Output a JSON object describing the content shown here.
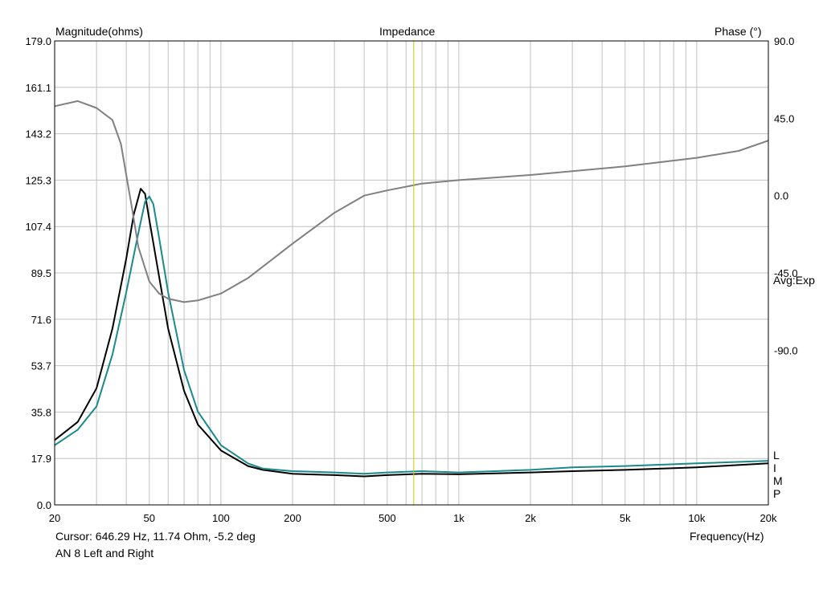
{
  "chart_data": {
    "type": "line",
    "title": "Impedance",
    "left_axis_label": "Magnitude(ohms)",
    "right_axis_label": "Phase (°)",
    "xlabel": "Frequency(Hz)",
    "x_scale": "log",
    "xlim": [
      20,
      20000
    ],
    "ylim_left": [
      0,
      179
    ],
    "ylim_right": [
      -180,
      90
    ],
    "y_ticks_left": [
      "0.0",
      "17.9",
      "35.8",
      "53.7",
      "71.6",
      "89.5",
      "107.4",
      "125.3",
      "143.2",
      "161.1",
      "179.0"
    ],
    "y_ticks_right": [
      "90.0",
      "45.0",
      "0.0",
      "-45.0",
      "-90.0"
    ],
    "x_ticks": [
      "20",
      "50",
      "100",
      "200",
      "500",
      "1k",
      "2k",
      "5k",
      "10k",
      "20k"
    ],
    "avg_label": "Avg:Exp",
    "corner_labels": [
      "L",
      "I",
      "M",
      "P"
    ],
    "cursor": {
      "frequency_hz": 646.29,
      "text": "Cursor: 646.29 Hz, 11.74 Ohm, -5.2 deg"
    },
    "legend_text": "AN 8 Left and Right",
    "colors": {
      "magnitude_left": "#000000",
      "magnitude_right": "#1a8a8a",
      "phase": "#808080",
      "cursor": "#c8c800",
      "grid": "#c0c0c0"
    },
    "series": [
      {
        "axis": "left",
        "x": [
          20,
          25,
          30,
          35,
          40,
          43,
          46,
          48,
          50,
          55,
          60,
          70,
          80,
          100,
          130,
          150,
          200,
          300,
          400,
          500,
          700,
          1000,
          2000,
          3000,
          5000,
          10000,
          20000
        ],
        "y": [
          25,
          32,
          45,
          68,
          95,
          112,
          122,
          120,
          110,
          88,
          68,
          44,
          31,
          21,
          15,
          13.5,
          12,
          11.5,
          11,
          11.5,
          12,
          11.8,
          12.5,
          13,
          13.5,
          14.5,
          16
        ]
      },
      {
        "axis": "left",
        "x": [
          20,
          25,
          30,
          35,
          40,
          45,
          48,
          50,
          52,
          55,
          60,
          70,
          80,
          100,
          130,
          150,
          200,
          300,
          400,
          500,
          700,
          1000,
          2000,
          3000,
          5000,
          10000,
          20000
        ],
        "y": [
          23,
          29,
          38,
          58,
          82,
          105,
          117,
          119,
          116,
          103,
          82,
          52,
          36,
          23,
          16,
          14,
          13,
          12.5,
          12,
          12.5,
          13,
          12.5,
          13.5,
          14.5,
          15,
          16,
          17
        ]
      },
      {
        "axis": "right",
        "x": [
          20,
          25,
          30,
          35,
          38,
          40,
          42,
          45,
          50,
          55,
          60,
          70,
          80,
          100,
          130,
          200,
          300,
          400,
          500,
          700,
          1000,
          2000,
          5000,
          10000,
          15000,
          20000
        ],
        "y": [
          52,
          55,
          51,
          44,
          30,
          12,
          -5,
          -30,
          -50,
          -57,
          -60,
          -62,
          -61,
          -57,
          -48,
          -28,
          -10,
          0,
          3,
          7,
          9,
          12,
          17,
          22,
          26,
          32
        ]
      }
    ]
  }
}
